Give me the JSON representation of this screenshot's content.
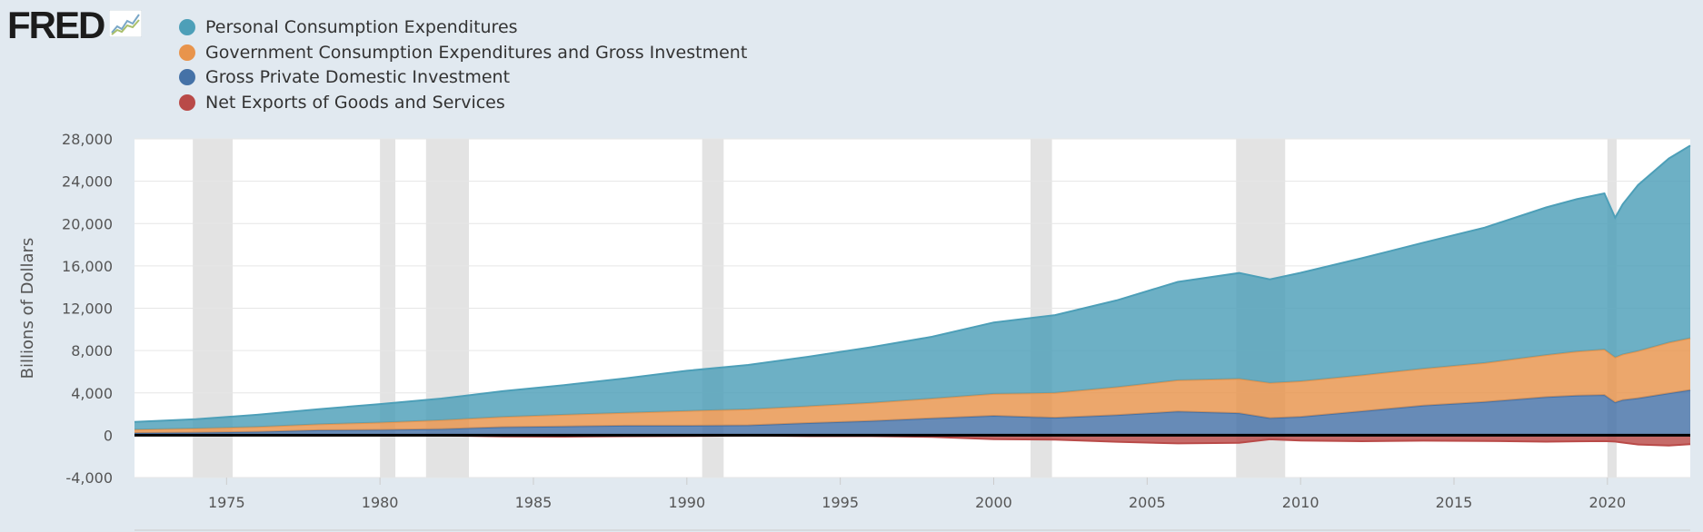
{
  "header": {
    "logo_text": "FRED",
    "logo_icon": "sparkline-chart-icon"
  },
  "colors": {
    "background": "#e1e9f0",
    "plot_background": "#ffffff",
    "recession": "#e3e3e3",
    "grid": "#e6e6e6",
    "zero_line": "#000000"
  },
  "chart_data": {
    "type": "area",
    "stacking": "normal",
    "ylabel": "Billions of Dollars",
    "xlim": [
      1972,
      2022.7
    ],
    "ylim": [
      -4000,
      28000
    ],
    "x_ticks": [
      "1975",
      "1980",
      "1985",
      "1990",
      "1995",
      "2000",
      "2005",
      "2010",
      "2015",
      "2020"
    ],
    "y_ticks": [
      "-4,000",
      "0",
      "4,000",
      "8,000",
      "12,000",
      "16,000",
      "20,000",
      "24,000",
      "28,000"
    ],
    "grid": true,
    "legend_position": "top-left",
    "recessions": [
      [
        1973.9,
        1975.2
      ],
      [
        1980.0,
        1980.5
      ],
      [
        1981.5,
        1982.9
      ],
      [
        1990.5,
        1991.2
      ],
      [
        2001.2,
        2001.9
      ],
      [
        2007.9,
        2009.5
      ],
      [
        2020.0,
        2020.3
      ]
    ],
    "x": [
      1972,
      1974,
      1976,
      1978,
      1980,
      1982,
      1984,
      1986,
      1988,
      1990,
      1992,
      1994,
      1996,
      1998,
      2000,
      2002,
      2004,
      2006,
      2008,
      2009,
      2010,
      2012,
      2014,
      2016,
      2018,
      2019,
      2019.9,
      2020.25,
      2020.5,
      2021,
      2022,
      2022.7
    ],
    "series": [
      {
        "name": "Net Exports of Goods and Services",
        "color": "#b94a48",
        "values": [
          -10,
          0,
          -10,
          -30,
          -20,
          -20,
          -110,
          -140,
          -100,
          -80,
          -40,
          -90,
          -90,
          -160,
          -380,
          -420,
          -620,
          -770,
          -720,
          -390,
          -510,
          -570,
          -520,
          -540,
          -610,
          -580,
          -560,
          -600,
          -700,
          -880,
          -970,
          -850
        ]
      },
      {
        "name": "Gross Private Domestic Investment",
        "color": "#4572a7",
        "values": [
          210,
          250,
          320,
          470,
          500,
          580,
          760,
          830,
          900,
          900,
          930,
          1150,
          1340,
          1600,
          1830,
          1650,
          1890,
          2240,
          2080,
          1620,
          1740,
          2260,
          2800,
          3150,
          3600,
          3750,
          3800,
          3100,
          3330,
          3500,
          3950,
          4270
        ]
      },
      {
        "name": "Government Consumption Expenditures and Gross Investment",
        "color": "#e8944c",
        "values": [
          310,
          380,
          460,
          560,
          690,
          830,
          970,
          1100,
          1220,
          1390,
          1510,
          1590,
          1720,
          1860,
          2070,
          2350,
          2650,
          2950,
          3250,
          3310,
          3350,
          3400,
          3490,
          3670,
          3970,
          4150,
          4300,
          4250,
          4300,
          4450,
          4800,
          4900
        ]
      },
      {
        "name": "Personal Consumption Expenditures",
        "color": "#4d9fb8",
        "values": [
          740,
          880,
          1150,
          1430,
          1750,
          2050,
          2430,
          2800,
          3250,
          3800,
          4200,
          4700,
          5250,
          5850,
          6750,
          7350,
          8200,
          9300,
          10000,
          9800,
          10260,
          11070,
          11900,
          12800,
          13950,
          14400,
          14750,
          13200,
          14200,
          15700,
          17400,
          18200
        ]
      }
    ]
  }
}
